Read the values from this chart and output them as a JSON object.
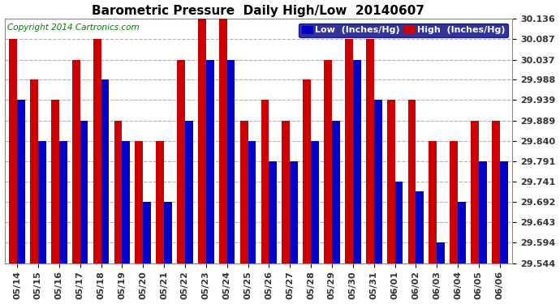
{
  "title": "Barometric Pressure  Daily High/Low  20140607",
  "copyright": "Copyright 2014 Cartronics.com",
  "legend_low": "Low  (Inches/Hg)",
  "legend_high": "High  (Inches/Hg)",
  "dates": [
    "05/14",
    "05/15",
    "05/16",
    "05/17",
    "05/18",
    "05/19",
    "05/20",
    "05/21",
    "05/22",
    "05/23",
    "05/24",
    "05/25",
    "05/26",
    "05/27",
    "05/28",
    "05/29",
    "05/30",
    "05/31",
    "06/01",
    "06/02",
    "06/03",
    "06/04",
    "06/05",
    "06/06"
  ],
  "high": [
    30.087,
    29.988,
    29.939,
    30.037,
    30.087,
    29.889,
    29.84,
    29.84,
    30.037,
    30.136,
    30.136,
    29.889,
    29.939,
    29.889,
    29.988,
    30.037,
    30.087,
    30.087,
    29.939,
    29.939,
    29.84,
    29.84,
    29.889,
    29.889
  ],
  "low": [
    29.939,
    29.84,
    29.84,
    29.889,
    29.988,
    29.84,
    29.692,
    29.692,
    29.889,
    30.037,
    30.037,
    29.84,
    29.791,
    29.791,
    29.84,
    29.889,
    30.037,
    29.939,
    29.741,
    29.717,
    29.594,
    29.692,
    29.791,
    29.791
  ],
  "ylim_min": 29.544,
  "ylim_max": 30.136,
  "yticks": [
    29.544,
    29.594,
    29.643,
    29.692,
    29.741,
    29.791,
    29.84,
    29.889,
    29.939,
    29.988,
    30.037,
    30.087,
    30.136
  ],
  "bar_color_low": "#0000cc",
  "bar_color_high": "#cc0000",
  "background_color": "#ffffff",
  "grid_color": "#b0b0b0",
  "title_fontsize": 11,
  "tick_fontsize": 8,
  "legend_fontsize": 8,
  "copyright_fontsize": 7.5
}
